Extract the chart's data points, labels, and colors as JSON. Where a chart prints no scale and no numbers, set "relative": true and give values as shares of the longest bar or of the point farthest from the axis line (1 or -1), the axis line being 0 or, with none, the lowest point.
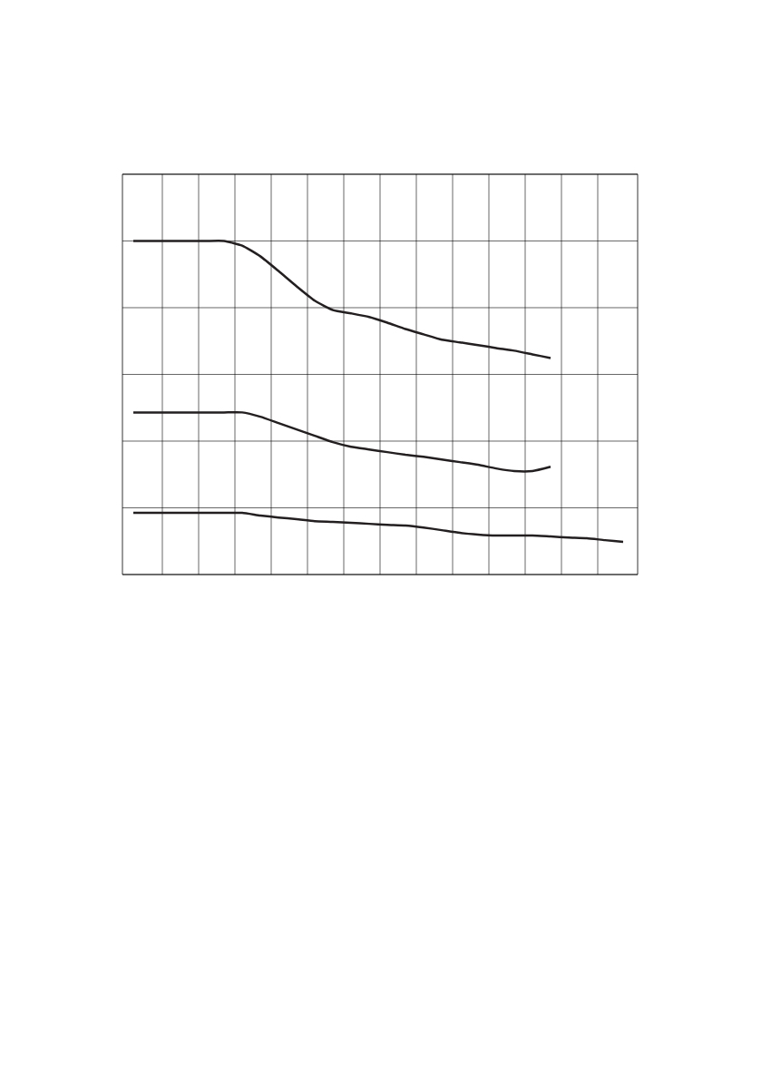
{
  "chart_data": {
    "type": "line",
    "relative": true,
    "grid": true,
    "marker": "none",
    "line_style": "solid",
    "categories": [
      null,
      null,
      null,
      null,
      null,
      null,
      null,
      null,
      null,
      null,
      null,
      null,
      null,
      null,
      null,
      null,
      null,
      null,
      null,
      null,
      null,
      null,
      null,
      null,
      null,
      null,
      null,
      null
    ],
    "series": [
      {
        "color": "#231f20",
        "values": [
          1.0,
          1.0,
          1.0,
          1.0,
          1.0,
          1.0,
          0.986,
          0.954,
          0.91,
          0.864,
          0.821,
          0.793,
          0.783,
          0.772,
          0.755,
          0.736,
          0.72,
          0.704,
          0.696,
          0.688,
          0.679,
          0.671,
          0.66,
          0.649,
          null,
          null,
          null,
          null
        ]
      },
      {
        "color": "#231f20",
        "values": [
          0.486,
          0.486,
          0.486,
          0.486,
          0.486,
          0.486,
          0.486,
          0.473,
          0.454,
          0.435,
          0.416,
          0.397,
          0.383,
          0.375,
          0.367,
          0.359,
          0.353,
          0.345,
          0.337,
          0.329,
          0.318,
          0.31,
          0.31,
          0.323,
          null,
          null,
          null,
          null
        ]
      },
      {
        "color": "#231f20",
        "values": [
          0.185,
          0.185,
          0.185,
          0.185,
          0.185,
          0.185,
          0.185,
          0.177,
          0.171,
          0.166,
          0.16,
          0.158,
          0.155,
          0.152,
          0.149,
          0.147,
          0.141,
          0.133,
          0.125,
          0.12,
          0.117,
          0.117,
          0.117,
          0.114,
          0.111,
          0.109,
          0.103,
          0.098
        ]
      }
    ]
  }
}
